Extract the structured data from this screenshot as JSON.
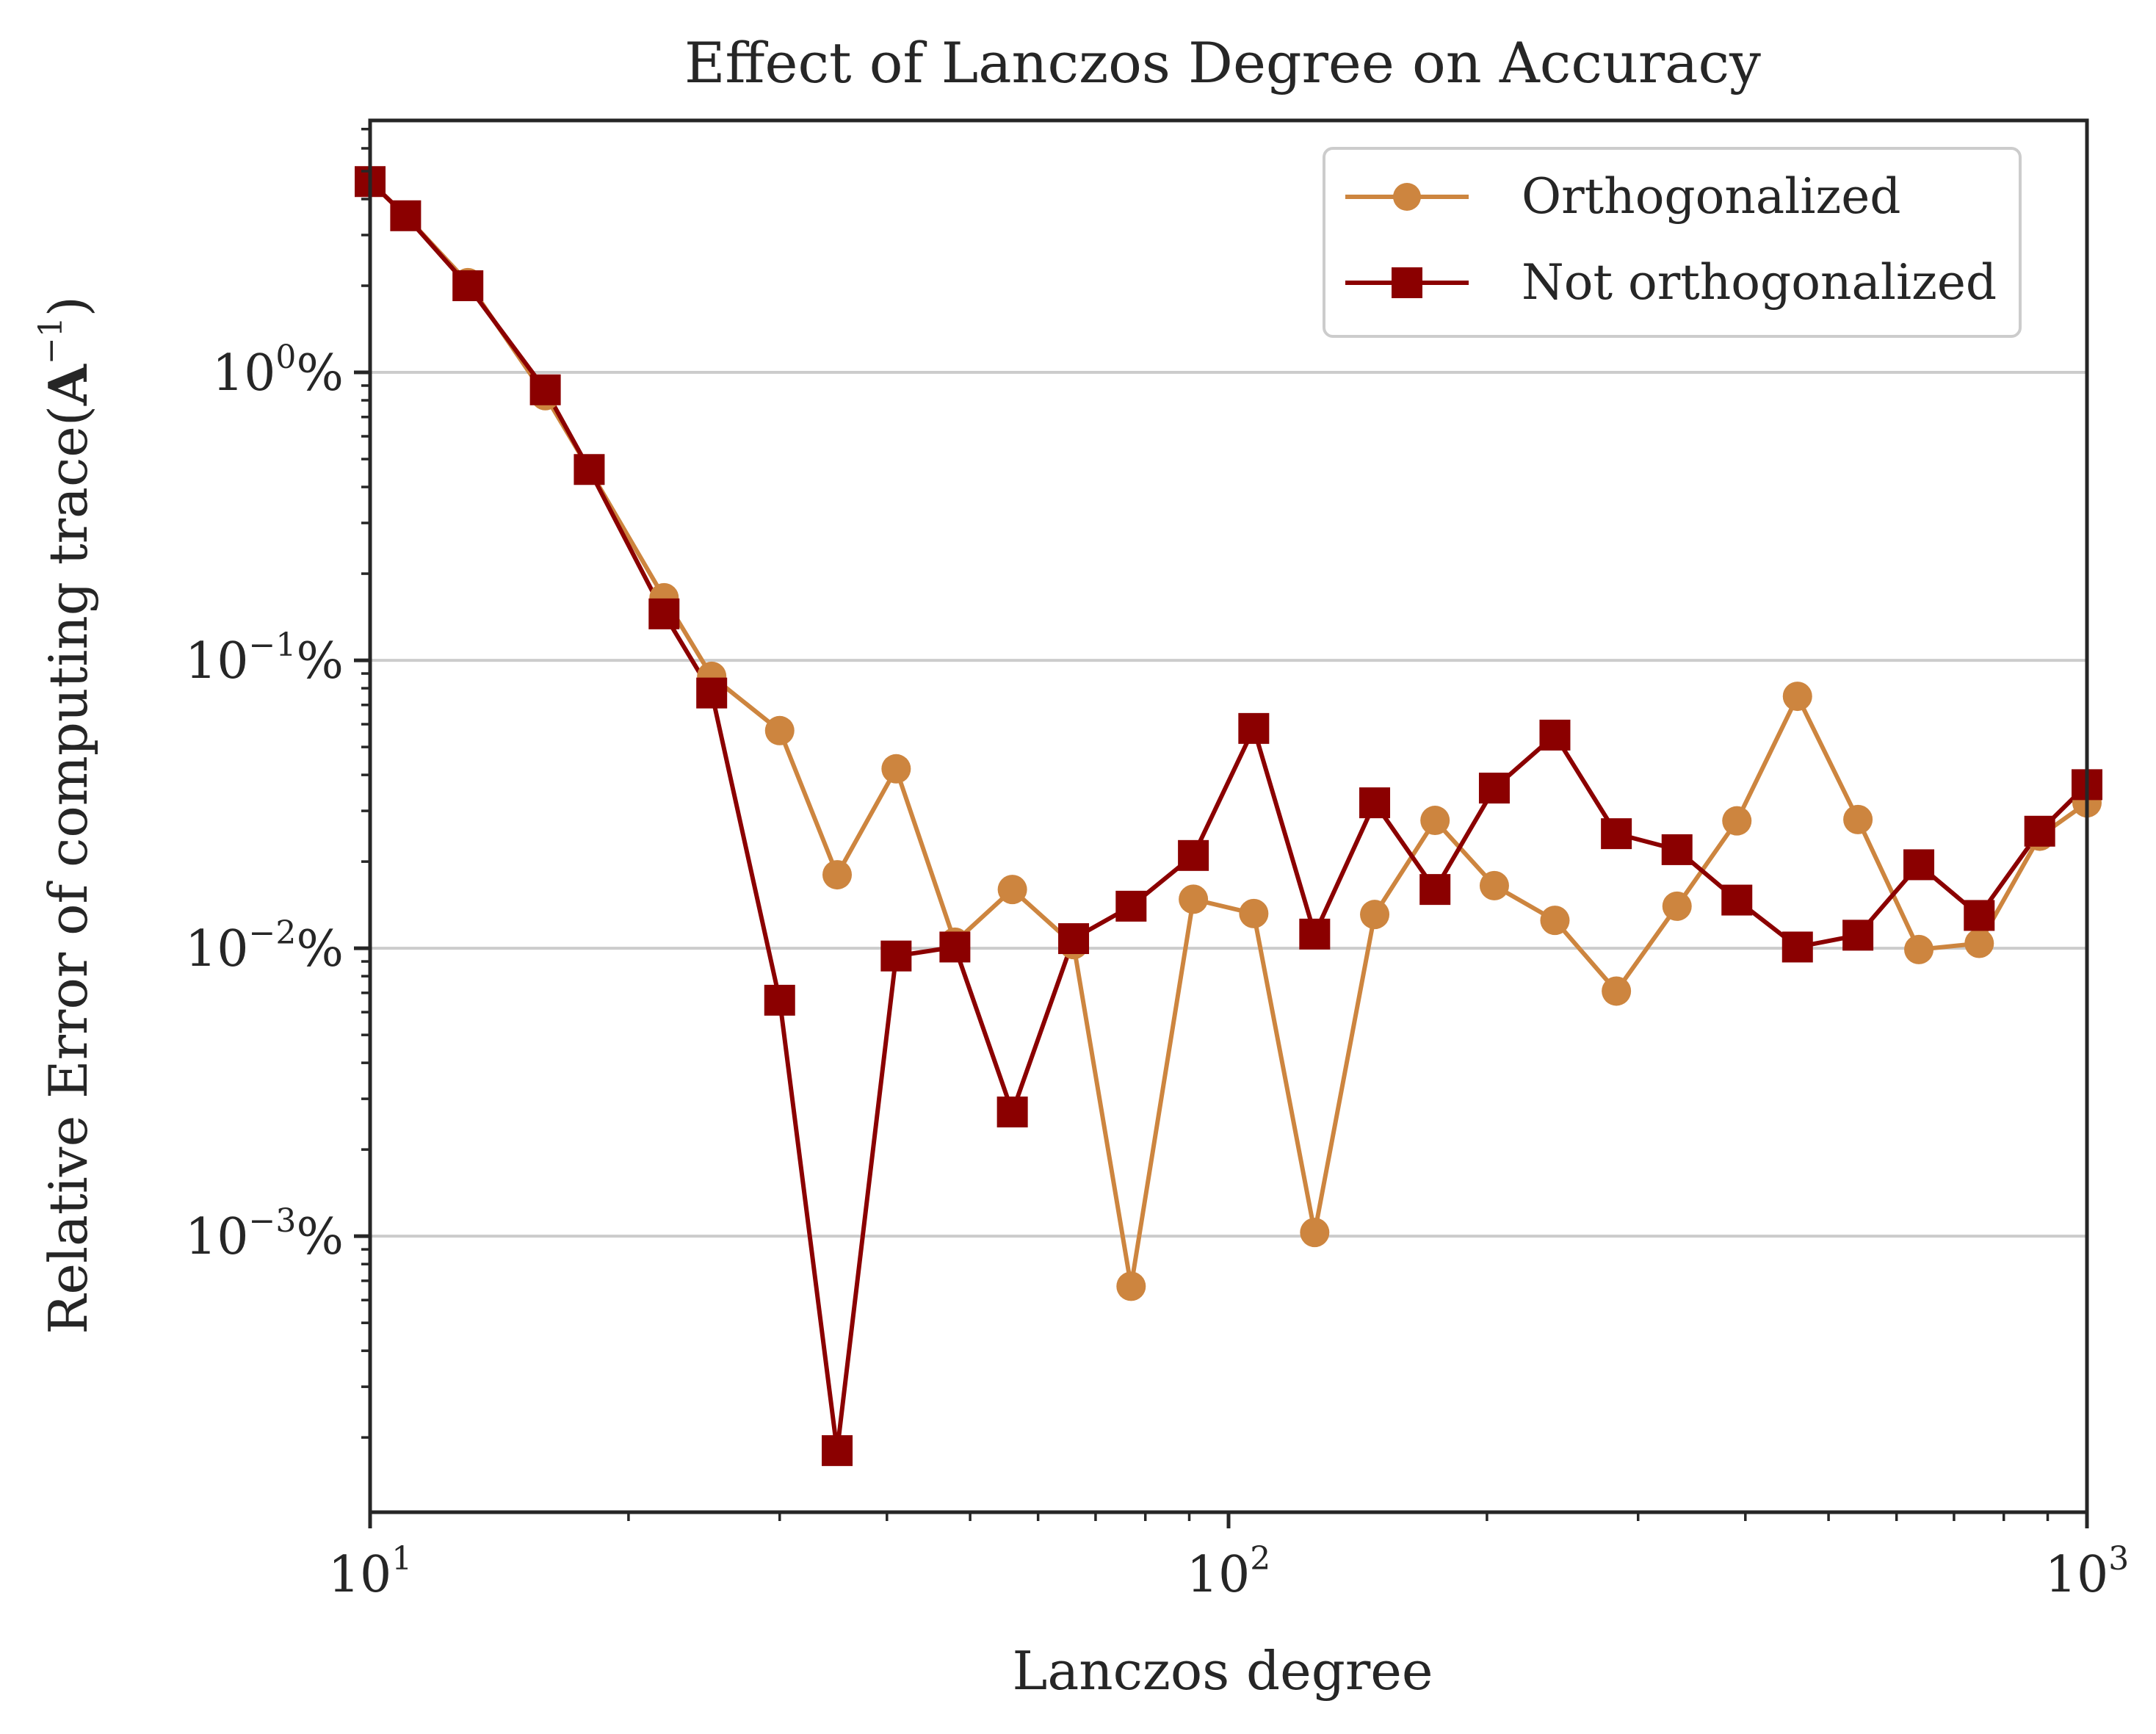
{
  "chart_data": {
    "type": "line",
    "title": "Effect of Lanczos Degree on Accuracy",
    "xlabel": "Lanczos degree",
    "ylabel_main": "Relative Error of computing trace(",
    "ylabel_bold": "A",
    "ylabel_sup": "−1",
    "ylabel_close": ")",
    "x_scale": "log",
    "y_scale": "log",
    "xlim": [
      10,
      1000
    ],
    "ylim": [
      0.00011,
      7.5
    ],
    "grid": "y-major",
    "legend_position": "top-right",
    "x_ticks": [
      {
        "value": 10,
        "base": "10",
        "exp": "1",
        "suffix": ""
      },
      {
        "value": 100,
        "base": "10",
        "exp": "2",
        "suffix": ""
      },
      {
        "value": 1000,
        "base": "10",
        "exp": "3",
        "suffix": ""
      }
    ],
    "y_ticks": [
      {
        "value": 1,
        "base": "10",
        "exp": "0",
        "suffix": "%"
      },
      {
        "value": 0.1,
        "base": "10",
        "exp": "−1",
        "suffix": "%"
      },
      {
        "value": 0.01,
        "base": "10",
        "exp": "−2",
        "suffix": "%"
      },
      {
        "value": 0.001,
        "base": "10",
        "exp": "−3",
        "suffix": "%"
      }
    ],
    "x": [
      10,
      11,
      13,
      16,
      18,
      22,
      25,
      30,
      35,
      41,
      48,
      56,
      66,
      77,
      91,
      107,
      126,
      148,
      174,
      204,
      240,
      283,
      333,
      391,
      460,
      541,
      637,
      749,
      881,
      1000
    ],
    "series": [
      {
        "name": "Orthogonalized",
        "color": "#cd853f",
        "marker": "circle",
        "values": [
          4.6,
          3.5,
          2.05,
          0.83,
          0.46,
          0.165,
          0.088,
          0.057,
          0.018,
          0.042,
          0.0105,
          0.016,
          0.0103,
          0.00067,
          0.0148,
          0.0132,
          0.00103,
          0.0131,
          0.0278,
          0.0165,
          0.0125,
          0.0071,
          0.014,
          0.0277,
          0.075,
          0.028,
          0.0099,
          0.0104,
          0.0245,
          0.032
        ]
      },
      {
        "name": "Not orthogonalized",
        "color": "#8b0000",
        "marker": "square",
        "values": [
          4.6,
          3.5,
          2.0,
          0.87,
          0.46,
          0.145,
          0.077,
          0.0066,
          0.00018,
          0.0094,
          0.0101,
          0.0027,
          0.0108,
          0.014,
          0.021,
          0.058,
          0.0112,
          0.032,
          0.016,
          0.036,
          0.055,
          0.025,
          0.022,
          0.0147,
          0.0101,
          0.0111,
          0.0195,
          0.013,
          0.0255,
          0.037
        ]
      }
    ]
  }
}
